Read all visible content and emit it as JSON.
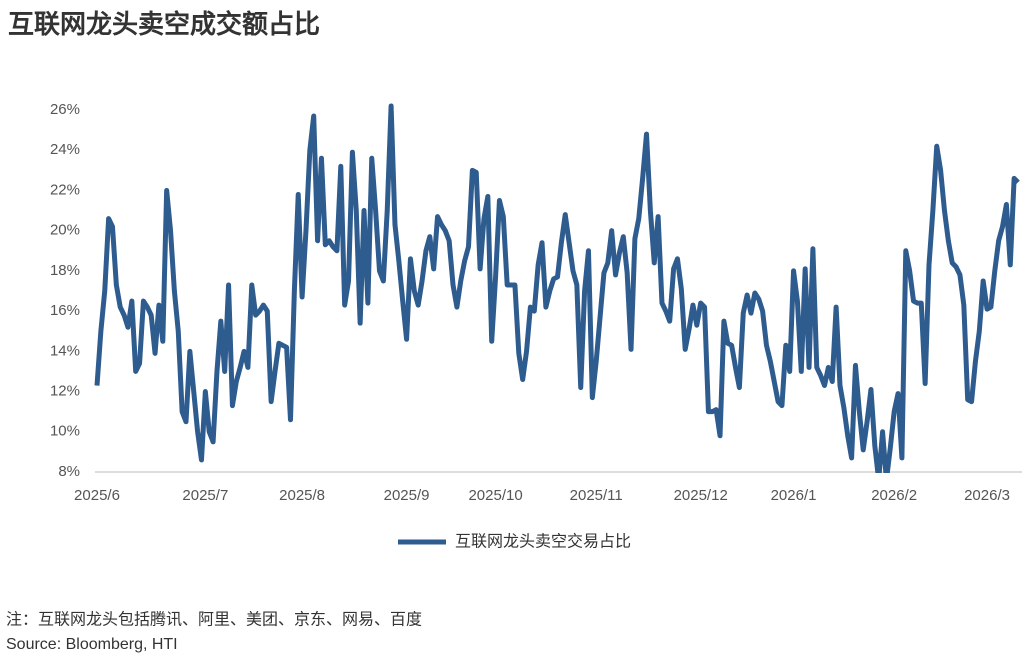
{
  "chart_data": {
    "type": "line",
    "title": "互联网龙头卖空成交额占比",
    "note": "注：互联网龙头包括腾讯、阿里、美团、京东、网易、百度",
    "source": "Source: Bloomberg, HTI",
    "categories": [
      "2025/6",
      null,
      null,
      null,
      null,
      null,
      null,
      null,
      null,
      null,
      null,
      null,
      null,
      null,
      null,
      null,
      null,
      null,
      null,
      null,
      null,
      null,
      null,
      null,
      null,
      null,
      null,
      null,
      "2025/7",
      null,
      null,
      null,
      null,
      null,
      null,
      null,
      null,
      null,
      null,
      null,
      null,
      null,
      null,
      null,
      null,
      null,
      null,
      null,
      null,
      null,
      null,
      null,
      null,
      "2025/8",
      null,
      null,
      null,
      null,
      null,
      null,
      null,
      null,
      null,
      null,
      null,
      null,
      null,
      null,
      null,
      null,
      null,
      null,
      null,
      null,
      null,
      null,
      null,
      null,
      null,
      null,
      "2025/9",
      null,
      null,
      null,
      null,
      null,
      null,
      null,
      null,
      null,
      null,
      null,
      null,
      null,
      null,
      null,
      null,
      null,
      null,
      null,
      null,
      null,
      null,
      "2025/10",
      null,
      null,
      null,
      null,
      null,
      null,
      null,
      null,
      null,
      null,
      null,
      null,
      null,
      null,
      null,
      null,
      null,
      null,
      null,
      null,
      null,
      null,
      null,
      null,
      null,
      "2025/11",
      null,
      null,
      null,
      null,
      null,
      null,
      null,
      null,
      null,
      null,
      null,
      null,
      null,
      null,
      null,
      null,
      null,
      null,
      null,
      null,
      null,
      null,
      null,
      null,
      null,
      null,
      "2025/12",
      null,
      null,
      null,
      null,
      null,
      null,
      null,
      null,
      null,
      null,
      null,
      null,
      null,
      null,
      null,
      null,
      null,
      null,
      null,
      null,
      null,
      null,
      null,
      "2026/1",
      null,
      null,
      null,
      null,
      null,
      null,
      null,
      null,
      null,
      null,
      null,
      null,
      null,
      null,
      null,
      null,
      null,
      null,
      null,
      null,
      null,
      null,
      null,
      null,
      null,
      "2026/2",
      null,
      null,
      null,
      null,
      null,
      null,
      null,
      null,
      null,
      null,
      null,
      null,
      null,
      null,
      null,
      null,
      null,
      null,
      null,
      null,
      null,
      null,
      null,
      "2026/3",
      null,
      null,
      null,
      null,
      null,
      null,
      null,
      null
    ],
    "series": [
      {
        "name": "互联网龙头卖空交易占比",
        "color": "#2e5c8f",
        "values": [
          12.3,
          15,
          17,
          20.6,
          20.2,
          17.3,
          16.2,
          15.8,
          15.2,
          16.5,
          13,
          13.4,
          16.5,
          16.2,
          15.8,
          13.9,
          16.3,
          14.5,
          22,
          20,
          17,
          15,
          11,
          10.5,
          14,
          12,
          10,
          8.6,
          12,
          10,
          9.5,
          13,
          15.5,
          13,
          17.3,
          11.3,
          12.5,
          13.2,
          14,
          13.2,
          17.3,
          15.8,
          16,
          16.3,
          16,
          11.5,
          13,
          14.4,
          14.3,
          14.2,
          10.6,
          17,
          21.8,
          16.7,
          20,
          24,
          25.7,
          19.5,
          23.6,
          19.3,
          19.5,
          19.2,
          19,
          23.2,
          16.3,
          17.5,
          23.9,
          21,
          15.4,
          21,
          16.4,
          23.6,
          21,
          18,
          17.5,
          21,
          26.2,
          20.3,
          18.5,
          16.5,
          14.6,
          18.6,
          17,
          16.3,
          17.5,
          19,
          19.7,
          18.1,
          20.7,
          20.3,
          20,
          19.5,
          17.3,
          16.2,
          17.5,
          18.5,
          19.2,
          23,
          22.9,
          18.1,
          20.6,
          21.7,
          14.5,
          17.7,
          21.5,
          20.7,
          17.3,
          17.3,
          17.3,
          13.9,
          12.6,
          14,
          16.2,
          16,
          18.3,
          19.4,
          16.2,
          17,
          17.6,
          17.7,
          19.4,
          20.8,
          19.4,
          18,
          17.3,
          12.2,
          17,
          19,
          11.7,
          13.5,
          15.7,
          17.9,
          18.4,
          20,
          17.8,
          18.9,
          19.7,
          17.9,
          14.1,
          19.6,
          20.6,
          22.6,
          24.8,
          21,
          18.4,
          20.7,
          16.4,
          16,
          15.5,
          18.1,
          18.6,
          17.1,
          14.1,
          15.1,
          16.3,
          15.3,
          16.4,
          16.2,
          11,
          11,
          11.1,
          9.8,
          15.5,
          14.4,
          14.3,
          13.2,
          12.2,
          15.9,
          16.8,
          15.9,
          16.9,
          16.6,
          16,
          14.3,
          13.5,
          12.5,
          11.5,
          11.3,
          14.3,
          13,
          18,
          16.5,
          13,
          18.1,
          13.2,
          19.1,
          13.2,
          12.8,
          12.3,
          13.2,
          12.5,
          16.2,
          12.3,
          11.2,
          9.8,
          8.7,
          13.3,
          11,
          9.1,
          10.5,
          12.1,
          9.3,
          7.6,
          10,
          7.6,
          9.2,
          11,
          11.9,
          8.7,
          19,
          18,
          16.5,
          16.4,
          16.4,
          12.4,
          18.3,
          21,
          24.2,
          23,
          21,
          19.5,
          18.4,
          18.2,
          17.8,
          16.3,
          11.6,
          11.5,
          13.5,
          15,
          17.5,
          16.1,
          16.2,
          18,
          19.5,
          20.2,
          21.3,
          18.3,
          22.6,
          22.4
        ]
      }
    ],
    "ylim": [
      8,
      26
    ],
    "yticks": [
      {
        "value": 8,
        "label": "8%"
      },
      {
        "value": 10,
        "label": "10%"
      },
      {
        "value": 12,
        "label": "12%"
      },
      {
        "value": 14,
        "label": "14%"
      },
      {
        "value": 16,
        "label": "16%"
      },
      {
        "value": 18,
        "label": "18%"
      },
      {
        "value": 20,
        "label": "20%"
      },
      {
        "value": 22,
        "label": "22%"
      },
      {
        "value": 24,
        "label": "24%"
      },
      {
        "value": 26,
        "label": "26%"
      }
    ],
    "grid": false,
    "legend": "bottom"
  }
}
